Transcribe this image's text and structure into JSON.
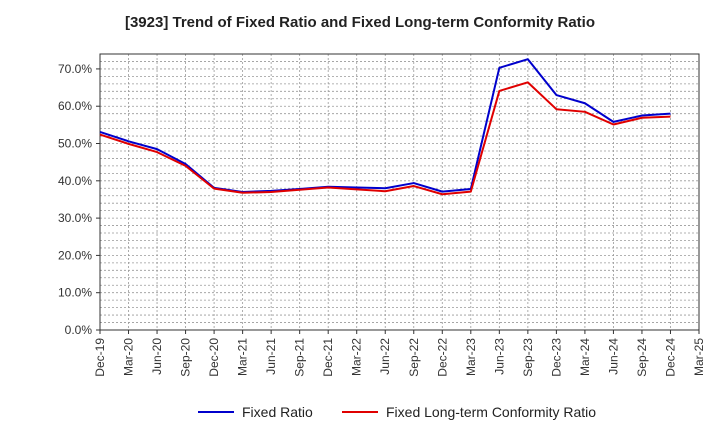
{
  "chart_data": {
    "type": "line",
    "title": "[3923]  Trend of Fixed Ratio and Fixed Long-term Conformity Ratio",
    "categories": [
      "Dec-19",
      "Mar-20",
      "Jun-20",
      "Sep-20",
      "Dec-20",
      "Mar-21",
      "Jun-21",
      "Sep-21",
      "Dec-21",
      "Mar-22",
      "Jun-22",
      "Sep-22",
      "Dec-22",
      "Mar-23",
      "Jun-23",
      "Sep-23",
      "Dec-23",
      "Mar-24",
      "Jun-24",
      "Sep-24",
      "Dec-24",
      "Mar-25"
    ],
    "ylim": [
      0,
      74
    ],
    "yticks": [
      0,
      10,
      20,
      30,
      40,
      50,
      60,
      70
    ],
    "ytick_labels": [
      "0.0%",
      "10.0%",
      "20.0%",
      "30.0%",
      "40.0%",
      "50.0%",
      "60.0%",
      "70.0%"
    ],
    "grid": true,
    "legend_position": "bottom",
    "series": [
      {
        "name": "Fixed Ratio",
        "color": "#0000cc",
        "values": [
          53.1,
          50.6,
          48.5,
          44.5,
          38.1,
          37.0,
          37.3,
          37.8,
          38.4,
          38.2,
          38.0,
          39.4,
          37.1,
          37.8,
          70.3,
          72.6,
          63.0,
          60.8,
          55.8,
          57.5,
          58.0,
          null
        ]
      },
      {
        "name": "Fixed Long-term Conformity Ratio",
        "color": "#e00000",
        "values": [
          52.4,
          49.9,
          47.7,
          44.0,
          37.9,
          36.8,
          37.0,
          37.6,
          38.2,
          37.7,
          37.2,
          38.6,
          36.4,
          37.1,
          64.1,
          66.4,
          59.2,
          58.5,
          55.1,
          56.9,
          57.2,
          null
        ]
      }
    ]
  }
}
